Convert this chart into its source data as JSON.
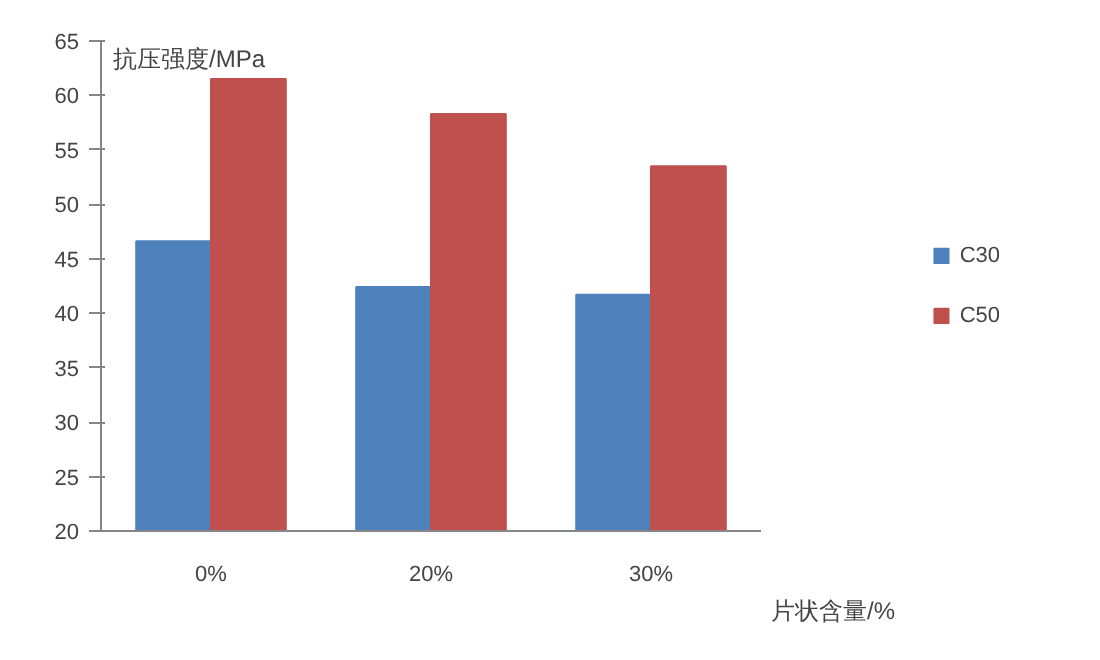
{
  "chart_data": {
    "type": "bar",
    "ylabel": "抗压强度/MPa",
    "xlabel": "片状含量/%",
    "categories": [
      "0%",
      "20%",
      "30%"
    ],
    "series": [
      {
        "name": "C30",
        "color": "#4f81bd",
        "values": [
          46.6,
          42.4,
          41.7
        ]
      },
      {
        "name": "C50",
        "color": "#c0504d",
        "values": [
          61.5,
          58.3,
          53.5
        ]
      }
    ],
    "ylim": [
      20,
      65
    ],
    "yticks": [
      20,
      25,
      30,
      35,
      40,
      45,
      50,
      55,
      60,
      65
    ],
    "grid": false,
    "legend": "right"
  }
}
